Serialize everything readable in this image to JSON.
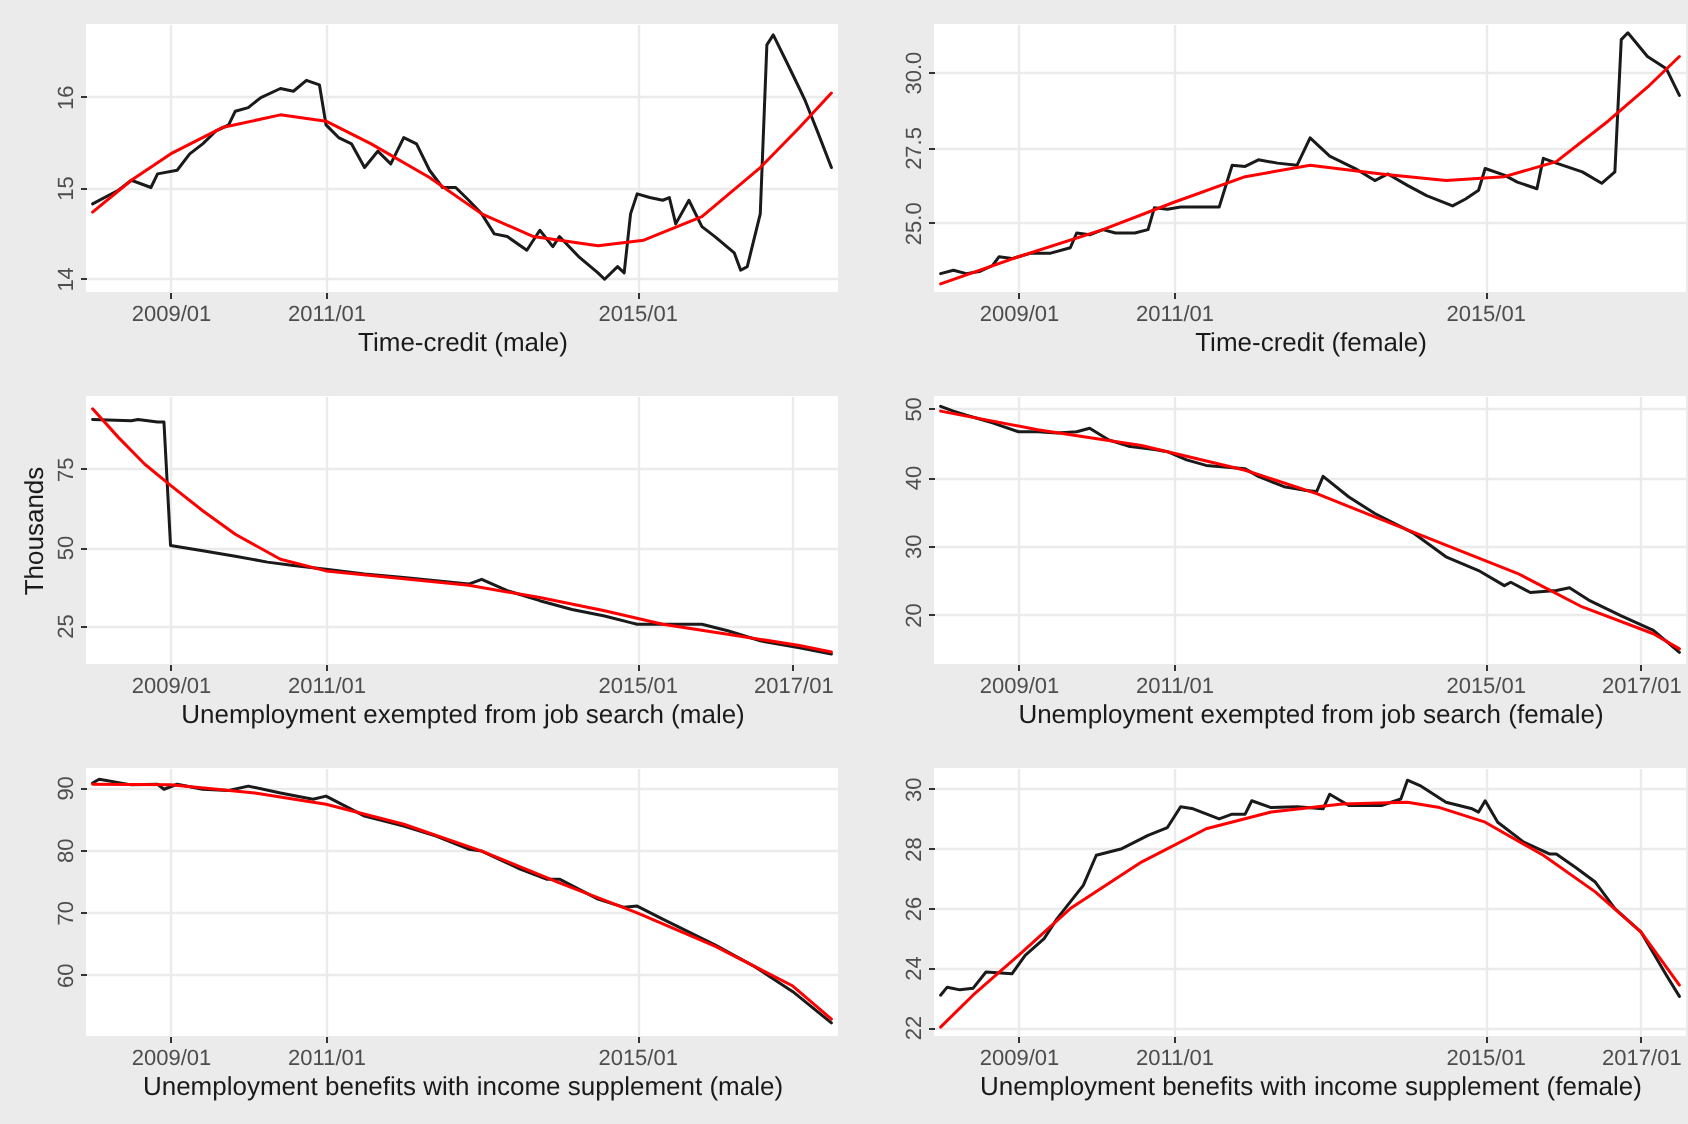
{
  "chart_data": [
    {
      "type": "line",
      "xlabel": "Time-credit (male)",
      "xlim": [
        "2007-12",
        "2017-08"
      ],
      "ylim": [
        13.85,
        16.8
      ],
      "yticks": [
        14,
        15,
        16
      ],
      "xticks": [
        {
          "value": "2009-01",
          "label": "2009/01"
        },
        {
          "value": "2011-01",
          "label": "2011/01"
        },
        {
          "value": "2015-01",
          "label": "2015/01"
        }
      ],
      "grid": true,
      "legend": false,
      "series": [
        {
          "color": "#1a1a1a",
          "x": [
            "2008-01",
            "2008-05",
            "2008-07",
            "2008-10",
            "2008-11",
            "2009-02",
            "2009-04",
            "2009-06",
            "2009-08",
            "2009-10",
            "2009-11",
            "2010-01",
            "2010-03",
            "2010-06",
            "2010-08",
            "2010-10",
            "2010-12",
            "2011-01",
            "2011-03",
            "2011-05",
            "2011-07",
            "2011-09",
            "2011-11",
            "2012-01",
            "2012-03",
            "2012-05",
            "2012-07",
            "2012-09",
            "2012-11",
            "2013-01",
            "2013-03",
            "2013-05",
            "2013-08",
            "2013-10",
            "2013-12",
            "2014-01",
            "2014-04",
            "2014-07",
            "2014-08",
            "2014-10",
            "2014-11",
            "2014-12",
            "2015-01",
            "2015-03",
            "2015-05",
            "2015-06",
            "2015-07",
            "2015-09",
            "2015-11",
            "2016-01",
            "2016-04",
            "2016-05",
            "2016-06",
            "2016-08",
            "2016-09",
            "2016-10",
            "2016-12",
            "2017-02",
            "2017-03",
            "2017-05",
            "2017-07"
          ],
          "values": [
            14.82,
            14.97,
            15.08,
            15.0,
            15.15,
            15.19,
            15.37,
            15.48,
            15.62,
            15.69,
            15.84,
            15.88,
            15.99,
            16.09,
            16.06,
            16.18,
            16.13,
            15.69,
            15.55,
            15.48,
            15.22,
            15.4,
            15.26,
            15.55,
            15.48,
            15.19,
            15.0,
            15.0,
            14.86,
            14.71,
            14.49,
            14.46,
            14.31,
            14.53,
            14.35,
            14.46,
            14.24,
            14.06,
            13.99,
            14.13,
            14.06,
            14.71,
            14.93,
            14.89,
            14.86,
            14.89,
            14.6,
            14.86,
            14.57,
            14.46,
            14.28,
            14.09,
            14.13,
            14.71,
            16.57,
            16.68,
            16.39,
            16.09,
            15.95,
            15.59,
            15.22
          ]
        },
        {
          "color": "#ff0000",
          "type": "line",
          "x": [
            "2008-01",
            "2008-07",
            "2009-01",
            "2009-09",
            "2010-06",
            "2011-01",
            "2011-08",
            "2012-05",
            "2013-01",
            "2013-09",
            "2014-07",
            "2015-02",
            "2015-11",
            "2016-08",
            "2017-02",
            "2017-07"
          ],
          "values": [
            14.73,
            15.08,
            15.37,
            15.66,
            15.8,
            15.73,
            15.48,
            15.11,
            14.71,
            14.46,
            14.36,
            14.42,
            14.68,
            15.22,
            15.66,
            16.04
          ]
        }
      ]
    },
    {
      "type": "line",
      "xlabel": "Time-credit (female)",
      "xlim": [
        "2007-12",
        "2017-08"
      ],
      "ylim": [
        22.7,
        31.6
      ],
      "yticks": [
        {
          "value": 25,
          "label": "25.0"
        },
        {
          "value": 27.5,
          "label": "27.5"
        },
        {
          "value": 30,
          "label": "30.0"
        }
      ],
      "xticks": [
        {
          "value": "2009-01",
          "label": "2009/01"
        },
        {
          "value": "2011-01",
          "label": "2011/01"
        },
        {
          "value": "2015-01",
          "label": "2015/01"
        }
      ],
      "grid": true,
      "legend": false,
      "series": [
        {
          "color": "#1a1a1a",
          "x": [
            "2008-01",
            "2008-03",
            "2008-05",
            "2008-07",
            "2008-09",
            "2008-10",
            "2008-12",
            "2009-03",
            "2009-06",
            "2009-09",
            "2009-10",
            "2009-12",
            "2010-02",
            "2010-04",
            "2010-07",
            "2010-09",
            "2010-10",
            "2010-12",
            "2011-02",
            "2011-08",
            "2011-10",
            "2011-12",
            "2012-02",
            "2012-05",
            "2012-08",
            "2012-10",
            "2013-01",
            "2013-05",
            "2013-08",
            "2013-10",
            "2014-01",
            "2014-04",
            "2014-08",
            "2014-10",
            "2014-12",
            "2015-01",
            "2015-04",
            "2015-06",
            "2015-09",
            "2015-10",
            "2015-12",
            "2016-04",
            "2016-07",
            "2016-09",
            "2016-10",
            "2016-11",
            "2017-02",
            "2017-05",
            "2017-07"
          ],
          "values": [
            23.31,
            23.42,
            23.31,
            23.38,
            23.58,
            23.87,
            23.81,
            23.99,
            23.99,
            24.17,
            24.66,
            24.6,
            24.77,
            24.66,
            24.66,
            24.77,
            25.5,
            25.45,
            25.52,
            25.52,
            26.91,
            26.87,
            27.09,
            26.98,
            26.91,
            27.82,
            27.21,
            26.8,
            26.4,
            26.62,
            26.24,
            25.9,
            25.56,
            25.79,
            26.08,
            26.8,
            26.58,
            26.35,
            26.13,
            27.14,
            26.98,
            26.69,
            26.31,
            26.69,
            31.08,
            31.31,
            30.52,
            30.11,
            29.23
          ]
        },
        {
          "color": "#ff0000",
          "type": "line",
          "x": [
            "2008-01",
            "2009-01",
            "2010-02",
            "2011-01",
            "2011-12",
            "2012-10",
            "2013-09",
            "2014-07",
            "2015-04",
            "2015-12",
            "2016-08",
            "2017-02",
            "2017-07"
          ],
          "values": [
            22.97,
            23.87,
            24.77,
            25.68,
            26.53,
            26.91,
            26.62,
            26.4,
            26.53,
            27.03,
            28.38,
            29.5,
            30.52
          ]
        }
      ]
    },
    {
      "type": "line",
      "xlabel": "Unemployment exempted from job search (male)",
      "ylabel": "Thousands",
      "xlim": [
        "2007-12",
        "2017-08"
      ],
      "ylim": [
        12.7,
        98.2
      ],
      "yticks": [
        25,
        50,
        75
      ],
      "xticks": [
        {
          "value": "2009-01",
          "label": "2009/01"
        },
        {
          "value": "2011-01",
          "label": "2011/01"
        },
        {
          "value": "2015-01",
          "label": "2015/01"
        },
        {
          "value": "2017-01",
          "label": "2017/01"
        }
      ],
      "grid": true,
      "legend": false,
      "series": [
        {
          "color": "#1a1a1a",
          "x": [
            "2008-01",
            "2008-07",
            "2008-08",
            "2008-11",
            "2008-12",
            "2009-01",
            "2009-06",
            "2009-11",
            "2010-04",
            "2010-08",
            "2011-01",
            "2011-07",
            "2012-01",
            "2012-06",
            "2012-11",
            "2013-01",
            "2013-05",
            "2013-10",
            "2014-03",
            "2014-08",
            "2014-12",
            "2015-01",
            "2015-05",
            "2015-08",
            "2015-11",
            "2016-03",
            "2016-08",
            "2017-02",
            "2017-07"
          ],
          "values": [
            90.7,
            90.3,
            90.7,
            89.9,
            89.9,
            50.5,
            48.8,
            47.1,
            45.2,
            44.1,
            42.9,
            41.4,
            40.3,
            39.3,
            38.2,
            39.7,
            36.1,
            32.9,
            30.1,
            28.0,
            25.9,
            25.4,
            25.4,
            25.4,
            25.4,
            23.3,
            20.1,
            17.9,
            15.9
          ]
        },
        {
          "color": "#ff0000",
          "type": "line",
          "x": [
            "2008-01",
            "2008-05",
            "2008-09",
            "2009-01",
            "2009-06",
            "2009-11",
            "2010-06",
            "2011-01",
            "2012-01",
            "2012-11",
            "2013-10",
            "2014-08",
            "2015-05",
            "2016-03",
            "2017-02",
            "2017-07"
          ],
          "values": [
            94.1,
            85.0,
            76.5,
            69.7,
            61.6,
            54.1,
            46.1,
            42.4,
            39.9,
            37.8,
            33.9,
            29.7,
            25.4,
            22.2,
            18.6,
            16.5
          ]
        }
      ]
    },
    {
      "type": "line",
      "xlabel": "Unemployment exempted from job search (female)",
      "xlim": [
        "2007-12",
        "2017-08"
      ],
      "ylim": [
        12.8,
        51.8
      ],
      "yticks": [
        20,
        30,
        40,
        50
      ],
      "xticks": [
        {
          "value": "2009-01",
          "label": "2009/01"
        },
        {
          "value": "2011-01",
          "label": "2011/01"
        },
        {
          "value": "2015-01",
          "label": "2015/01"
        },
        {
          "value": "2017-01",
          "label": "2017/01"
        }
      ],
      "grid": true,
      "legend": false,
      "series": [
        {
          "color": "#1a1a1a",
          "x": [
            "2008-01",
            "2008-03",
            "2008-05",
            "2008-09",
            "2009-01",
            "2009-04",
            "2009-07",
            "2009-10",
            "2009-12",
            "2010-03",
            "2010-06",
            "2010-10",
            "2010-12",
            "2011-03",
            "2011-06",
            "2011-12",
            "2012-02",
            "2012-06",
            "2012-09",
            "2012-11",
            "2012-12",
            "2013-04",
            "2013-08",
            "2014-02",
            "2014-07",
            "2014-12",
            "2015-04",
            "2015-05",
            "2015-08",
            "2015-12",
            "2016-02",
            "2016-05",
            "2016-10",
            "2017-03",
            "2017-07"
          ],
          "values": [
            50.3,
            49.6,
            49.0,
            47.9,
            46.6,
            46.6,
            46.4,
            46.6,
            47.1,
            45.4,
            44.5,
            44.0,
            43.7,
            42.5,
            41.7,
            41.2,
            40.1,
            38.6,
            38.1,
            37.9,
            40.1,
            37.1,
            34.7,
            31.8,
            28.4,
            26.4,
            24.2,
            24.7,
            23.2,
            23.5,
            23.9,
            22.1,
            19.8,
            17.7,
            14.5
          ]
        },
        {
          "color": "#ff0000",
          "type": "line",
          "x": [
            "2008-01",
            "2009-04",
            "2010-08",
            "2011-12",
            "2012-11",
            "2013-08",
            "2014-07",
            "2015-06",
            "2016-04",
            "2017-03",
            "2017-07"
          ],
          "values": [
            49.6,
            46.9,
            44.6,
            41.0,
            37.6,
            34.2,
            30.1,
            26.0,
            21.1,
            17.2,
            15.0
          ]
        }
      ]
    },
    {
      "type": "line",
      "xlabel": "Unemployment benefits with income supplement (male)",
      "xlim": [
        "2007-12",
        "2017-08"
      ],
      "ylim": [
        50.2,
        93.1
      ],
      "yticks": [
        60,
        70,
        80,
        90
      ],
      "xticks": [
        {
          "value": "2009-01",
          "label": "2009/01"
        },
        {
          "value": "2011-01",
          "label": "2011/01"
        },
        {
          "value": "2015-01",
          "label": "2015/01"
        }
      ],
      "grid": true,
      "legend": false,
      "series": [
        {
          "color": "#1a1a1a",
          "x": [
            "2008-01",
            "2008-02",
            "2008-07",
            "2008-11",
            "2008-12",
            "2009-02",
            "2009-06",
            "2009-10",
            "2010-01",
            "2010-06",
            "2010-11",
            "2011-01",
            "2011-07",
            "2012-01",
            "2012-06",
            "2012-11",
            "2013-01",
            "2013-07",
            "2013-11",
            "2014-01",
            "2014-07",
            "2014-11",
            "2015-01",
            "2015-05",
            "2016-01",
            "2016-07",
            "2017-01",
            "2017-07"
          ],
          "values": [
            90.7,
            91.3,
            90.4,
            90.5,
            89.7,
            90.5,
            89.7,
            89.5,
            90.2,
            89.1,
            88.1,
            88.6,
            85.4,
            83.8,
            82.2,
            80.1,
            79.8,
            76.9,
            75.3,
            75.3,
            72.1,
            70.8,
            71.0,
            68.9,
            64.8,
            61.4,
            57.3,
            52.3
          ]
        },
        {
          "color": "#ff0000",
          "type": "line",
          "x": [
            "2008-01",
            "2009-01",
            "2010-02",
            "2011-01",
            "2012-01",
            "2013-01",
            "2014-01",
            "2015-01",
            "2016-01",
            "2017-01",
            "2017-07"
          ],
          "values": [
            90.5,
            90.4,
            89.1,
            87.3,
            84.1,
            79.8,
            74.7,
            69.9,
            64.6,
            58.2,
            52.9
          ]
        }
      ]
    },
    {
      "type": "line",
      "xlabel": "Unemployment benefits with income supplement (female)",
      "xlim": [
        "2007-12",
        "2017-08"
      ],
      "ylim": [
        21.7,
        30.7
      ],
      "yticks": [
        22,
        24,
        26,
        28,
        30
      ],
      "xticks": [
        {
          "value": "2009-01",
          "label": "2009/01"
        },
        {
          "value": "2011-01",
          "label": "2011/01"
        },
        {
          "value": "2015-01",
          "label": "2015/01"
        },
        {
          "value": "2017-01",
          "label": "2017/01"
        }
      ],
      "grid": true,
      "legend": false,
      "series": [
        {
          "color": "#1a1a1a",
          "x": [
            "2008-01",
            "2008-02",
            "2008-04",
            "2008-06",
            "2008-08",
            "2008-12",
            "2009-02",
            "2009-05",
            "2009-07",
            "2009-11",
            "2010-01",
            "2010-05",
            "2010-09",
            "2010-12",
            "2011-02",
            "2011-04",
            "2011-08",
            "2011-10",
            "2011-12",
            "2012-01",
            "2012-04",
            "2012-08",
            "2012-12",
            "2013-01",
            "2013-04",
            "2013-09",
            "2013-12",
            "2014-01",
            "2014-03",
            "2014-07",
            "2014-11",
            "2014-12",
            "2015-01",
            "2015-03",
            "2015-07",
            "2015-11",
            "2015-12",
            "2016-03",
            "2016-06",
            "2016-09",
            "2017-01",
            "2017-05",
            "2017-07"
          ],
          "values": [
            23.07,
            23.34,
            23.25,
            23.3,
            23.85,
            23.79,
            24.41,
            24.97,
            25.64,
            26.76,
            27.77,
            27.99,
            28.44,
            28.7,
            29.4,
            29.33,
            28.99,
            29.15,
            29.15,
            29.6,
            29.37,
            29.4,
            29.33,
            29.82,
            29.44,
            29.44,
            29.66,
            30.29,
            30.11,
            29.55,
            29.33,
            29.22,
            29.6,
            28.88,
            28.21,
            27.81,
            27.81,
            27.36,
            26.87,
            25.98,
            25.2,
            23.74,
            23.03
          ]
        },
        {
          "color": "#ff0000",
          "type": "line",
          "x": [
            "2008-01",
            "2008-06",
            "2009-01",
            "2009-09",
            "2010-08",
            "2011-06",
            "2012-04",
            "2013-03",
            "2014-01",
            "2014-06",
            "2015-01",
            "2015-10",
            "2016-06",
            "2017-01",
            "2017-07"
          ],
          "values": [
            22.0,
            23.07,
            24.41,
            25.98,
            27.54,
            28.66,
            29.22,
            29.49,
            29.55,
            29.37,
            28.88,
            27.77,
            26.54,
            25.2,
            23.41
          ]
        }
      ]
    }
  ]
}
